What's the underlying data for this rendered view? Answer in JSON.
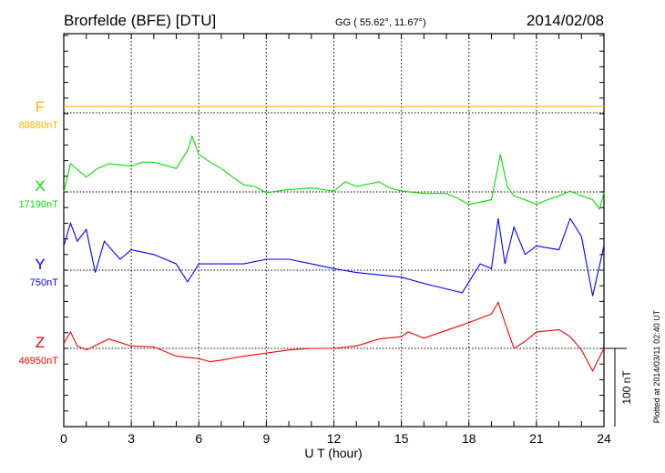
{
  "header": {
    "station": "Brorfelde (BFE)  [DTU]",
    "coords": "GG ( 55.62°,  11.67°)",
    "date": "2014/02/08"
  },
  "footer": {
    "plotted": "Plotted at 2014/03/11 02:40 UT",
    "scale_label": "100 nT"
  },
  "chart_data": {
    "type": "line",
    "title": "Brorfelde (BFE)  [DTU]",
    "xlabel": "U T (hour)",
    "xlim": [
      0,
      24
    ],
    "xticks": [
      "0",
      "3",
      "6",
      "9",
      "12",
      "15",
      "18",
      "21",
      "24"
    ],
    "scale_nT": 100,
    "grid": true,
    "series": [
      {
        "name": "F",
        "color": "#ffb400",
        "baseline_label": "88880nT",
        "x": [
          0,
          24
        ],
        "y": [
          8,
          8
        ]
      },
      {
        "name": "X",
        "color": "#00e000",
        "baseline_label": "17190nT",
        "x": [
          0,
          0.3,
          1,
          1.5,
          2,
          3,
          3.5,
          4,
          4.5,
          5,
          5.5,
          5.7,
          6,
          6.5,
          7,
          7.5,
          8,
          8.5,
          9,
          9.5,
          10,
          11,
          12,
          12.5,
          13,
          14,
          14.5,
          15,
          16,
          17,
          17.5,
          18,
          19,
          19.4,
          19.7,
          20,
          20.5,
          21,
          21.5,
          22,
          22.5,
          23,
          23.5,
          23.8,
          24
        ],
        "y": [
          0,
          36,
          19,
          30,
          36,
          33,
          38,
          38,
          34,
          30,
          53,
          71,
          48,
          38,
          30,
          19,
          9,
          7,
          -1,
          1,
          3,
          5,
          1,
          13,
          7,
          13,
          5,
          1,
          -2,
          -2,
          -8,
          -16,
          -10,
          48,
          7,
          -5,
          -10,
          -16,
          -10,
          -5,
          1,
          -5,
          -10,
          -22,
          -1
        ]
      },
      {
        "name": "Y",
        "color": "#0000ff",
        "baseline_label": "750nT",
        "x": [
          0,
          0.3,
          0.6,
          1,
          1.4,
          1.8,
          2.5,
          3,
          4,
          5,
          5.5,
          6,
          7,
          8,
          9,
          10,
          11,
          12,
          13,
          14,
          15,
          16,
          17,
          17.7,
          18,
          18.5,
          19,
          19.3,
          19.6,
          20,
          20.5,
          21,
          22,
          22.5,
          23,
          23.5,
          24
        ],
        "y": [
          31,
          60,
          37,
          52,
          -3,
          37,
          14,
          26,
          20,
          8,
          -15,
          8,
          8,
          8,
          14,
          14,
          8,
          2,
          -3,
          -6,
          -9,
          -17,
          -24,
          -29,
          -15,
          8,
          2,
          66,
          8,
          55,
          20,
          31,
          26,
          66,
          43,
          -33,
          31
        ]
      },
      {
        "name": "Z",
        "color": "#ff0000",
        "baseline_label": "46950nT",
        "x": [
          0,
          0.3,
          0.6,
          1,
          2,
          3,
          4,
          5,
          6,
          6.5,
          7,
          8,
          9,
          10,
          11,
          12,
          13,
          14,
          15,
          15.3,
          16,
          17,
          18,
          19,
          19.3,
          19.6,
          20,
          20.5,
          21,
          22,
          22.5,
          23,
          23.5,
          24
        ],
        "y": [
          6,
          21,
          3,
          -2,
          12,
          3,
          2,
          -10,
          -13,
          -17,
          -15,
          -10,
          -6,
          -2,
          0,
          0,
          3,
          12,
          15,
          21,
          13,
          23,
          33,
          44,
          59,
          33,
          0,
          9,
          21,
          24,
          15,
          -2,
          -29,
          0
        ]
      }
    ]
  }
}
